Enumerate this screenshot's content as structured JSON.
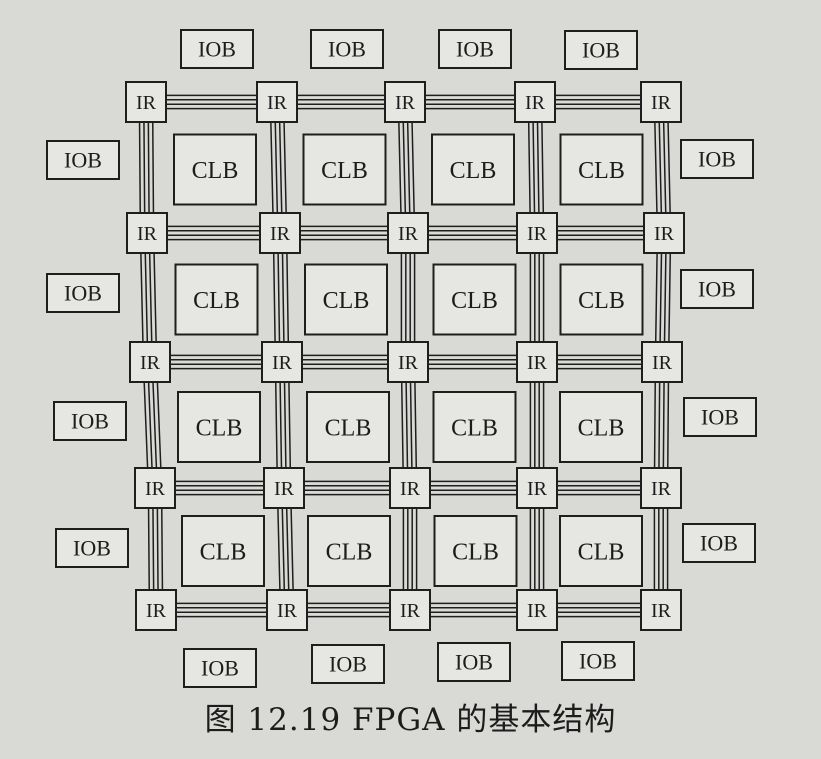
{
  "diagram": {
    "labels": {
      "io_block": "IOB",
      "interconnect": "IR",
      "logic_block": "CLB"
    },
    "grid": {
      "ir_rows": 5,
      "ir_cols": 5,
      "clb_rows": 4,
      "clb_cols": 4
    },
    "bus_wires": 4,
    "iob_counts": {
      "top": 4,
      "bottom": 4,
      "left": 4,
      "right": 4
    },
    "colors": {
      "background": "#d9d9d6",
      "box_fill": "#e6e6e3",
      "stroke": "#1e1e1e",
      "text": "#1c1c1c"
    }
  },
  "caption": "图 12.19    FPGA 的基本结构"
}
